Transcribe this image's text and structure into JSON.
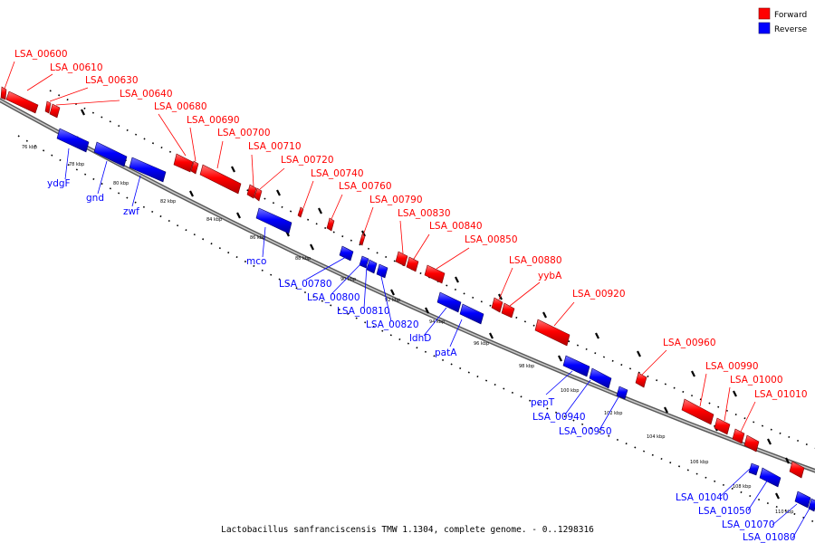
{
  "legend": {
    "items": [
      {
        "label": "Forward",
        "color": "#ff0000"
      },
      {
        "label": "Reverse",
        "color": "#0000ff"
      }
    ]
  },
  "caption": "Lactobacillus sanfranciscensis TMW 1.1304, complete genome. - 0..1298316",
  "colors": {
    "forward": "#ff0000",
    "reverse": "#0000ff",
    "backbone": "#9a9a9a"
  },
  "ticks": [
    "76 kbp",
    "78 kbp",
    "80 kbp",
    "82 kbp",
    "84 kbp",
    "86 kbp",
    "88 kbp",
    "90 kbp",
    "92 kbp",
    "94 kbp",
    "96 kbp",
    "98 kbp",
    "100 kbp",
    "102 kbp",
    "104 kbp",
    "106 kbp",
    "108 kbp",
    "110 kbp"
  ],
  "forward_genes": [
    "LSA_00600",
    "LSA_00610",
    "LSA_00630",
    "LSA_00640",
    "LSA_00680",
    "LSA_00690",
    "LSA_00700",
    "LSA_00710",
    "LSA_00720",
    "LSA_00740",
    "LSA_00760",
    "LSA_00790",
    "LSA_00830",
    "LSA_00840",
    "LSA_00850",
    "LSA_00880",
    "yybA",
    "LSA_00920",
    "LSA_00960",
    "LSA_00990",
    "LSA_01000",
    "LSA_01010"
  ],
  "reverse_genes": [
    "ydgF",
    "gnd",
    "zwf",
    "mco",
    "LSA_00780",
    "LSA_00800",
    "LSA_00810",
    "LSA_00820",
    "ldhD",
    "patA",
    "pepT",
    "LSA_00940",
    "LSA_00950",
    "LSA_01040",
    "LSA_01050",
    "LSA_01070",
    "LSA_01080"
  ]
}
